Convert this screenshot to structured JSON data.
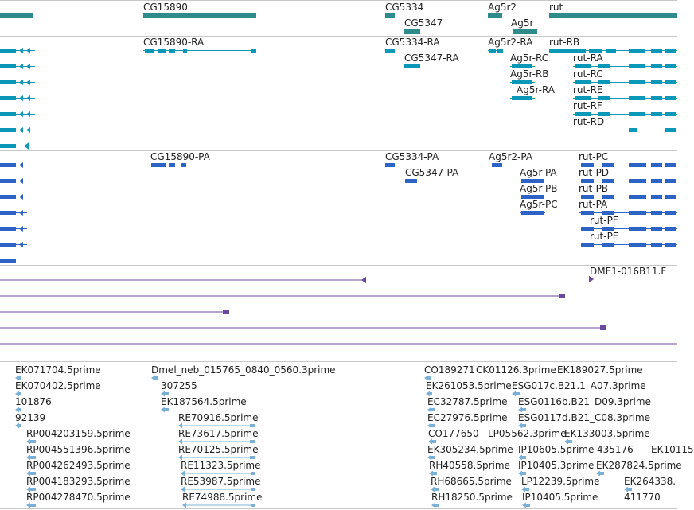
{
  "colors": {
    "gene": "#2e8b8b",
    "transcript": "#0a97b8",
    "protein": "#2e63c6",
    "clone": "#6a4a9c",
    "est": "#7ab0d6",
    "divider": "#c8c8c8"
  },
  "tracks": {
    "genes": [
      "CG15890",
      "CG5334",
      "CG5347",
      "Ag5r2",
      "Ag5r",
      "rut"
    ],
    "transcripts": [
      "CG15890-RA",
      "CG5334-RA",
      "CG5347-RA",
      "Ag5r2-RA",
      "Ag5r-RC",
      "Ag5r-RB",
      "Ag5r-RA",
      "rut-RB",
      "rut-RA",
      "rut-RC",
      "rut-RE",
      "rut-RF",
      "rut-RD"
    ],
    "proteins": [
      "CG15890-PA",
      "CG5334-PA",
      "CG5347-PA",
      "Ag5r2-PA",
      "Ag5r-PA",
      "Ag5r-PB",
      "Ag5r-PC",
      "rut-PC",
      "rut-PD",
      "rut-PB",
      "rut-PA",
      "rut-PF",
      "rut-PE"
    ],
    "clones": [
      "DME1-016B11.F"
    ],
    "ests": [
      "EK071704.5prime",
      "EK070402.5prime",
      "101876",
      "92139",
      "RP004203159.5prime",
      "RP004551396.5prime",
      "RP004262493.5prime",
      "RP004183293.5prime",
      "RP004278470.5prime",
      "Dmel_neb_015765_0840_0560.3prime",
      "307255",
      "EK187564.5prime",
      "RE70916.5prime",
      "RE73617.5prime",
      "RE70125.5prime",
      "RE11323.5prime",
      "RE53987.5prime",
      "RE74988.5prime",
      "CO189271",
      "CK01126.3prime",
      "EK189027.5prime",
      "EK261053.5prime",
      "ESG017c.B21.1_A07.3prime",
      "EC32787.5prime",
      "ESG0116b.B21_D09.3prime",
      "EC27976.5prime",
      "ESG0117d.B21_C08.3prime",
      "CO177650",
      "LP05562.3prime",
      "EK133003.5prime",
      "EK305234.5prime",
      "IP10605.5prime",
      "435176",
      "EK10115",
      "RH40558.5prime",
      "IP10405.3prime",
      "EK287824.5prime",
      "RH68665.5prime",
      "LP12239.5prime",
      "EK264338.",
      "RH18250.5prime",
      "IP10405.5prime",
      "411770"
    ]
  }
}
